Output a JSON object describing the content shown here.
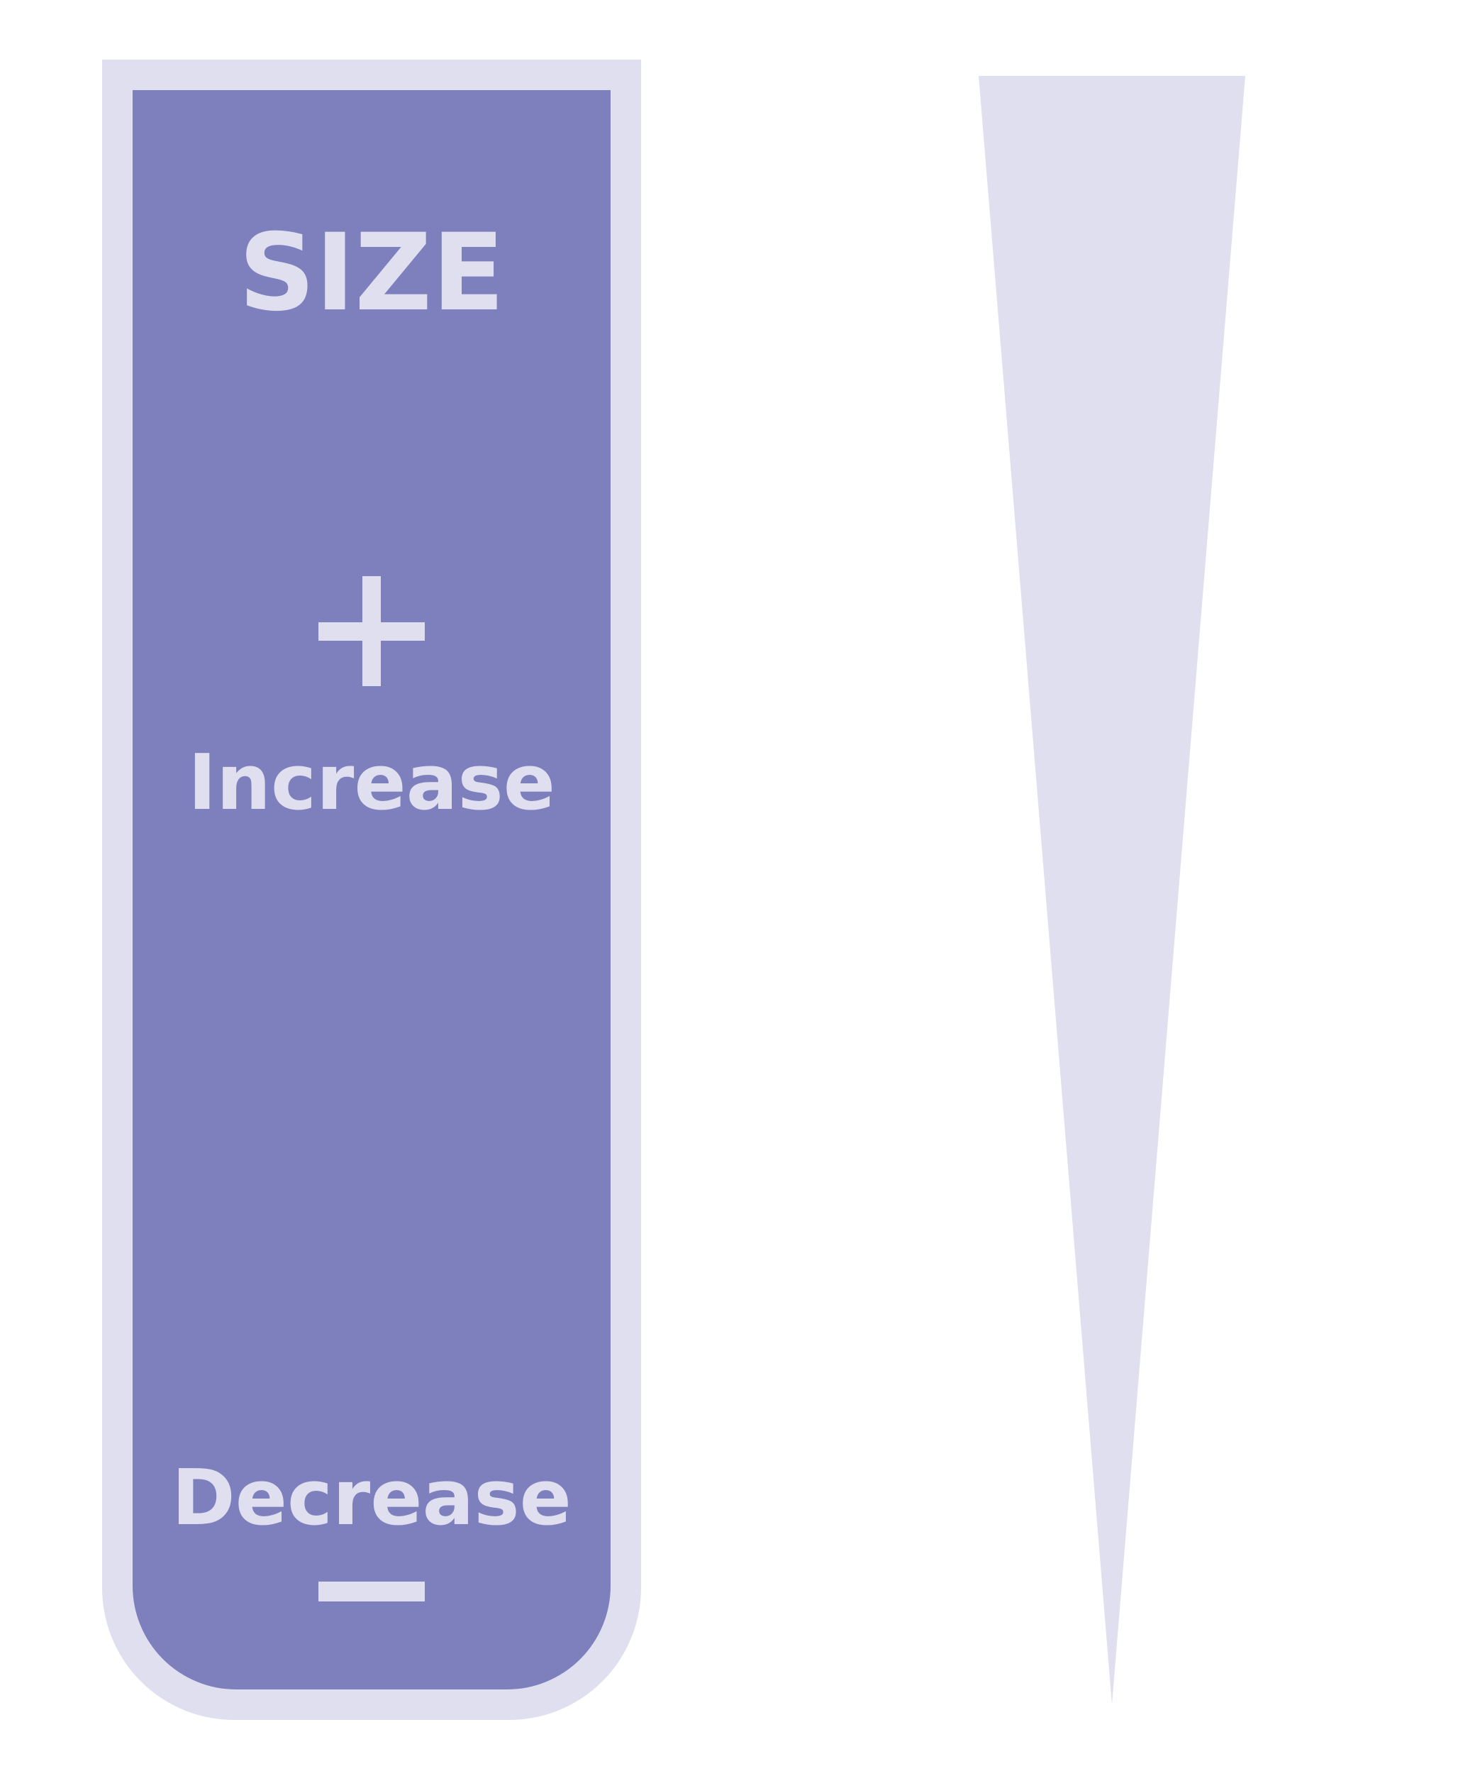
{
  "panel": {
    "title": "SIZE",
    "increase_label": "Increase",
    "decrease_label": "Decrease"
  },
  "icons": {
    "increase": "plus-icon",
    "decrease": "minus-icon"
  },
  "colors": {
    "panel_fill": "#7e80bd",
    "light_lavender": "#e0dfef",
    "background": "#ffffff"
  }
}
